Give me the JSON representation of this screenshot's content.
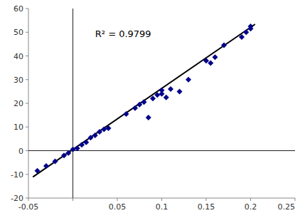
{
  "chart_data": {
    "type": "scatter",
    "series": [
      {
        "type": "scatter",
        "color": "#00008B",
        "marker": "diamond",
        "x": [
          -0.04,
          -0.03,
          -0.02,
          -0.01,
          -0.005,
          0.0,
          0.005,
          0.01,
          0.015,
          0.02,
          0.025,
          0.03,
          0.035,
          0.04,
          0.06,
          0.07,
          0.075,
          0.08,
          0.085,
          0.09,
          0.095,
          0.1,
          0.1,
          0.105,
          0.11,
          0.12,
          0.13,
          0.15,
          0.155,
          0.16,
          0.17,
          0.19,
          0.195,
          0.2,
          0.2
        ],
        "values": [
          -8.5,
          -6.5,
          -4.5,
          -2.0,
          -1.0,
          0.5,
          1.0,
          2.5,
          3.5,
          5.5,
          6.5,
          8.0,
          9.0,
          9.5,
          15.5,
          18.0,
          19.5,
          20.5,
          14.0,
          22.0,
          23.5,
          25.5,
          24.0,
          22.5,
          26.0,
          25.0,
          30.0,
          38.0,
          37.0,
          39.5,
          44.5,
          48.0,
          50.0,
          51.5,
          52.5
        ]
      },
      {
        "type": "line",
        "color": "#000000",
        "x": [
          -0.045,
          0.205
        ],
        "values": [
          -11.11,
          53.39
        ]
      }
    ],
    "annotations": [
      {
        "text": "R² = 0.9799",
        "x": 0.025,
        "y": 51
      }
    ],
    "xlim": [
      -0.05,
      0.25
    ],
    "ylim": [
      -20,
      60
    ],
    "xticks": [
      -0.05,
      {
        "value": 0.0,
        "label": null
      },
      0.05,
      0.1,
      0.15,
      0.2,
      0.25
    ],
    "yticks": [
      -20,
      -10,
      0,
      10,
      20,
      30,
      40,
      50,
      60
    ]
  }
}
